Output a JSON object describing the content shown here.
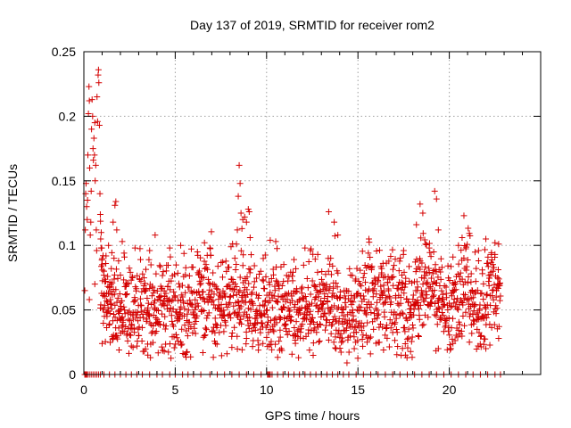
{
  "chart_data": {
    "type": "scatter",
    "title": "Day 137 of 2019, SRMTID for receiver rom2",
    "xlabel": "GPS time / hours",
    "ylabel": "SRMTID / TECUs",
    "xlim": [
      0,
      25
    ],
    "ylim": [
      0,
      0.25
    ],
    "x_ticks": [
      {
        "value": 0,
        "label": "0"
      },
      {
        "value": 5,
        "label": "5"
      },
      {
        "value": 10,
        "label": "10"
      },
      {
        "value": 15,
        "label": "15"
      },
      {
        "value": 20,
        "label": "20"
      }
    ],
    "y_ticks": [
      {
        "value": 0,
        "label": "0"
      },
      {
        "value": 0.05,
        "label": "0.05"
      },
      {
        "value": 0.1,
        "label": "0.1"
      },
      {
        "value": 0.15,
        "label": "0.15"
      },
      {
        "value": 0.2,
        "label": "0.2"
      },
      {
        "value": 0.25,
        "label": "0.25"
      }
    ],
    "grid": true,
    "marker": "+",
    "series_color": "#d40000",
    "series": [
      {
        "name": "SRMTID",
        "points": [
          [
            0.05,
            0.065
          ],
          [
            0.08,
            0.112
          ],
          [
            0.1,
            0.14
          ],
          [
            0.12,
            0.148
          ],
          [
            0.15,
            0.13
          ],
          [
            0.18,
            0.12
          ],
          [
            0.2,
            0.135
          ],
          [
            0.22,
            0.17
          ],
          [
            0.25,
            0.202
          ],
          [
            0.28,
            0.223
          ],
          [
            0.3,
            0.212
          ],
          [
            0.32,
            0.16
          ],
          [
            0.35,
            0.108
          ],
          [
            0.38,
            0.118
          ],
          [
            0.4,
            0.142
          ],
          [
            0.42,
            0.19
          ],
          [
            0.45,
            0.213
          ],
          [
            0.48,
            0.2
          ],
          [
            0.5,
            0.175
          ],
          [
            0.52,
            0.166
          ],
          [
            0.55,
            0.183
          ],
          [
            0.58,
            0.17
          ],
          [
            0.6,
            0.195
          ],
          [
            0.62,
            0.15
          ],
          [
            0.65,
            0.162
          ],
          [
            0.68,
            0.112
          ],
          [
            0.7,
            0.096
          ],
          [
            0.72,
            0.215
          ],
          [
            0.75,
            0.196
          ],
          [
            0.78,
            0.232
          ],
          [
            0.8,
            0.236
          ],
          [
            0.82,
            0.226
          ],
          [
            0.85,
            0.193
          ],
          [
            0.88,
            0.14
          ],
          [
            0.9,
            0.124
          ],
          [
            0.92,
            0.105
          ],
          [
            0.95,
            0.11
          ],
          [
            0.98,
            0.098
          ],
          [
            1.0,
            0.085
          ],
          [
            1.05,
            0.092
          ],
          [
            1.1,
            0.08
          ],
          [
            1.15,
            0.072
          ],
          [
            1.2,
            0.086
          ],
          [
            1.25,
            0.063
          ],
          [
            1.3,
            0.076
          ],
          [
            1.35,
            0.1
          ],
          [
            1.4,
            0.068
          ],
          [
            1.45,
            0.058
          ],
          [
            1.5,
            0.082
          ],
          [
            1.55,
            0.071
          ],
          [
            1.6,
            0.118
          ],
          [
            1.65,
            0.09
          ],
          [
            1.7,
            0.131
          ],
          [
            1.75,
            0.134
          ],
          [
            1.8,
            0.112
          ],
          [
            1.9,
            0.088
          ],
          [
            2.0,
            0.077
          ],
          [
            2.1,
            0.103
          ],
          [
            2.2,
            0.094
          ],
          [
            2.3,
            0.068
          ],
          [
            8.5,
            0.162
          ],
          [
            8.55,
            0.148
          ],
          [
            8.45,
            0.138
          ],
          [
            8.6,
            0.125
          ],
          [
            8.65,
            0.113
          ],
          [
            8.7,
            0.12
          ],
          [
            8.8,
            0.122
          ],
          [
            8.9,
            0.118
          ],
          [
            9.0,
            0.128
          ],
          [
            9.05,
            0.126
          ],
          [
            9.1,
            0.106
          ],
          [
            8.4,
            0.112
          ],
          [
            8.35,
            0.101
          ],
          [
            10.2,
            0.104
          ],
          [
            10.5,
            0.103
          ],
          [
            11.5,
            0.089
          ],
          [
            12.1,
            0.098
          ],
          [
            12.4,
            0.096
          ],
          [
            12.8,
            0.093
          ],
          [
            13.4,
            0.126
          ],
          [
            13.7,
            0.118
          ],
          [
            13.9,
            0.108
          ],
          [
            14.6,
            0.077
          ],
          [
            15.6,
            0.105
          ],
          [
            16.3,
            0.082
          ],
          [
            17.5,
            0.096
          ],
          [
            18.2,
            0.116
          ],
          [
            18.4,
            0.132
          ],
          [
            18.55,
            0.125
          ],
          [
            18.7,
            0.101
          ],
          [
            18.9,
            0.098
          ],
          [
            19.2,
            0.142
          ],
          [
            19.3,
            0.136
          ],
          [
            19.4,
            0.112
          ],
          [
            19.6,
            0.083
          ],
          [
            20.2,
            0.091
          ],
          [
            20.5,
            0.1
          ],
          [
            20.7,
            0.106
          ],
          [
            20.8,
            0.123
          ],
          [
            21.2,
            0.078
          ],
          [
            21.6,
            0.096
          ],
          [
            22.0,
            0.105
          ],
          [
            22.3,
            0.093
          ],
          [
            22.5,
            0.102
          ],
          [
            22.7,
            0.101
          ],
          [
            6.6,
            0.102
          ],
          [
            6.9,
            0.098
          ],
          [
            7.6,
            0.087
          ],
          [
            5.3,
            0.1
          ],
          [
            4.7,
            0.098
          ],
          [
            3.6,
            0.096
          ],
          [
            3.9,
            0.108
          ],
          [
            2.8,
            0.098
          ],
          [
            3.1,
            0.089
          ],
          [
            0.3,
            0.058
          ],
          [
            0.6,
            0.07
          ],
          [
            1.0,
            0.024
          ],
          [
            1.8,
            0.03
          ],
          [
            2.6,
            0.022
          ],
          [
            3.5,
            0.015
          ],
          [
            4.4,
            0.018
          ],
          [
            5.3,
            0.025
          ],
          [
            6.6,
            0.03
          ],
          [
            7.2,
            0.024
          ],
          [
            8.1,
            0.021
          ],
          [
            8.9,
            0.028
          ],
          [
            9.8,
            0.024
          ],
          [
            10.8,
            0.02
          ],
          [
            11.6,
            0.03
          ],
          [
            12.9,
            0.026
          ],
          [
            13.8,
            0.02
          ],
          [
            14.4,
            0.009
          ],
          [
            14.8,
            0.02
          ],
          [
            15.5,
            0.025
          ],
          [
            16.4,
            0.019
          ],
          [
            17.6,
            0.015
          ],
          [
            18.3,
            0.03
          ],
          [
            19.4,
            0.02
          ],
          [
            20.2,
            0.024
          ],
          [
            21.1,
            0.025
          ],
          [
            22.0,
            0.02
          ],
          [
            22.7,
            0.028
          ]
        ]
      }
    ],
    "zero_points_x": [
      0.05,
      0.1,
      0.15,
      0.2,
      0.3,
      0.4,
      0.5,
      0.6,
      0.7,
      0.8,
      0.9,
      1.1,
      1.4,
      1.7,
      2.0,
      2.3,
      2.6,
      2.9,
      3.2,
      3.6,
      4.0,
      4.3,
      4.7,
      5.0,
      5.4,
      5.7,
      6.0,
      6.4,
      6.9,
      7.3,
      7.7,
      8.1,
      8.5,
      8.9,
      9.3,
      9.7,
      10.05,
      10.1,
      10.15,
      10.2,
      10.3,
      10.6,
      10.9,
      11.2,
      11.5,
      11.8,
      12.1,
      12.4,
      12.7,
      13.0,
      13.3,
      13.6,
      13.9,
      14.2,
      14.5,
      14.9,
      15.3,
      15.7,
      16.1,
      16.5,
      16.9,
      17.3,
      17.7,
      18.1,
      18.5,
      18.9,
      19.3,
      19.7,
      20.1,
      20.5,
      20.9,
      21.3,
      21.7,
      22.1,
      22.5,
      22.8
    ]
  }
}
